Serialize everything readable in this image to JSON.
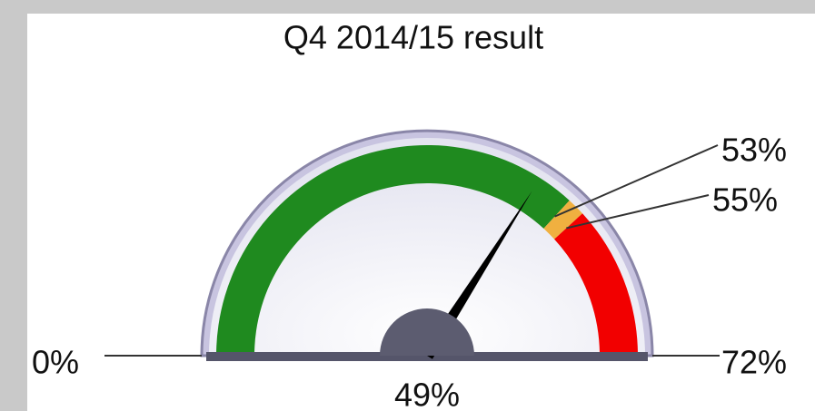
{
  "chart_data": {
    "type": "gauge",
    "title": "Q4 2014/15 result",
    "ylim": [
      0,
      72
    ],
    "yticks": [
      {
        "value": 0,
        "label": "0%"
      },
      {
        "value": 53,
        "label": "53%"
      },
      {
        "value": 55,
        "label": "55%"
      },
      {
        "value": 72,
        "label": "72%"
      }
    ],
    "bands": [
      {
        "to": 53,
        "color": "#1f8a1f"
      },
      {
        "to": 55,
        "color": "#f0b040"
      },
      {
        "to": 72,
        "color": "#f20000"
      }
    ],
    "value": 49,
    "value_label": "49%",
    "needle_color": "#000000"
  }
}
